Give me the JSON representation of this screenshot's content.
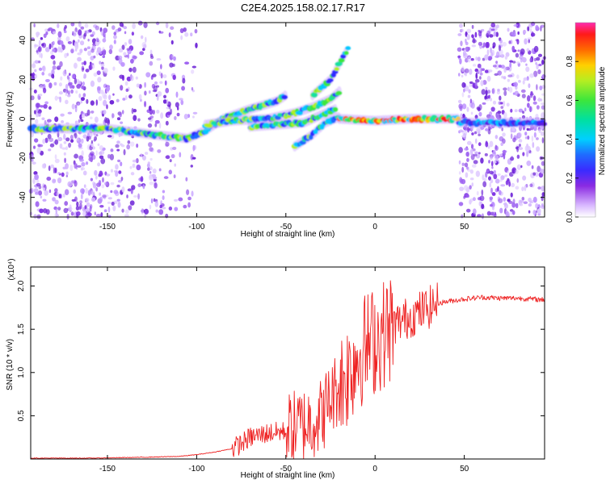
{
  "title": "C2E4.2025.158.02.17.R17",
  "chart_data": [
    {
      "type": "heatmap",
      "xlabel": "Height of straight line (km)",
      "ylabel": "Frequency (Hz)",
      "xlim": [
        -193,
        95
      ],
      "ylim": [
        -50,
        49
      ],
      "xticks": [
        -150,
        -100,
        -50,
        0,
        50
      ],
      "yticks": [
        -40,
        -20,
        0,
        20,
        40
      ],
      "colorbar": {
        "label": "Normalized spectral amplitude",
        "range": [
          0,
          1
        ],
        "ticks": [
          "0.0",
          "0.2",
          "0.4",
          "0.6",
          "0.8"
        ]
      },
      "ridges": [
        {
          "x": [
            -193,
            -150,
            -125,
            -105,
            -95,
            -85,
            -70,
            -55,
            -50
          ],
          "y": [
            -5,
            -5,
            -8,
            -10,
            -6,
            0,
            5,
            9,
            12
          ]
        },
        {
          "x": [
            -95,
            -80,
            -60,
            -45,
            -35,
            -25,
            -20
          ],
          "y": [
            -3,
            -1,
            0,
            3,
            6,
            10,
            14
          ]
        },
        {
          "x": [
            -70,
            -55,
            -40,
            -30,
            -22
          ],
          "y": [
            -4,
            -3,
            -2,
            2,
            5
          ]
        },
        {
          "x": [
            -45,
            -35,
            -28,
            -20
          ],
          "y": [
            -14,
            -8,
            -2,
            1
          ]
        },
        {
          "x": [
            -20,
            0,
            20,
            47
          ],
          "y": [
            0,
            -1,
            0,
            0
          ]
        },
        {
          "x": [
            -35,
            -25,
            -15
          ],
          "y": [
            12,
            20,
            36
          ]
        },
        {
          "x": [
            47,
            95
          ],
          "y": [
            -2,
            -2
          ]
        }
      ]
    },
    {
      "type": "line",
      "xlabel": "Height of straight line (km)",
      "ylabel": "SNR (10 * v/v)",
      "yscale_label": "(x10⁴)",
      "xlim": [
        -193,
        95
      ],
      "ylim": [
        0,
        2.22
      ],
      "xticks": [
        -150,
        -100,
        -50,
        0,
        50
      ],
      "yticks": [
        0.5,
        1.0,
        1.5,
        2.0
      ],
      "color": "#ee2222",
      "x": [
        -193,
        -160,
        -130,
        -110,
        -100,
        -90,
        -80,
        -75,
        -70,
        -60,
        -50,
        -40,
        -30,
        -25,
        -20,
        -15,
        -10,
        -5,
        0,
        5,
        10,
        15,
        20,
        25,
        30,
        35,
        40,
        50,
        60,
        70,
        80,
        95
      ],
      "y": [
        0.01,
        0.01,
        0.02,
        0.03,
        0.05,
        0.08,
        0.12,
        0.18,
        0.25,
        0.3,
        0.32,
        0.4,
        0.5,
        0.7,
        0.85,
        1.0,
        1.2,
        1.3,
        1.38,
        1.45,
        1.55,
        1.6,
        1.65,
        1.7,
        1.75,
        1.8,
        1.82,
        1.85,
        1.87,
        1.86,
        1.86,
        1.84
      ]
    }
  ]
}
